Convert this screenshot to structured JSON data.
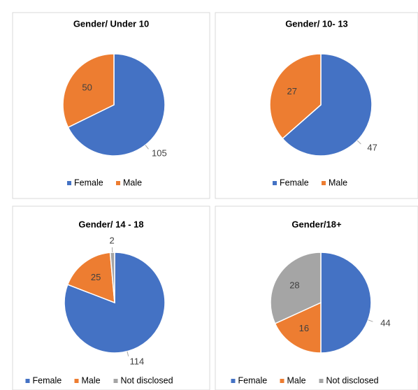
{
  "chart_data": [
    {
      "type": "pie",
      "title": "Gender/ Under 10",
      "categories": [
        "Female",
        "Male"
      ],
      "values": [
        105,
        50
      ],
      "colors": [
        "#4472c4",
        "#ed7d31"
      ]
    },
    {
      "type": "pie",
      "title": "Gender/ 10- 13",
      "categories": [
        "Female",
        "Male"
      ],
      "values": [
        47,
        27
      ],
      "colors": [
        "#4472c4",
        "#ed7d31"
      ]
    },
    {
      "type": "pie",
      "title": "Gender/ 14 - 18",
      "categories": [
        "Female",
        "Male",
        "Not disclosed"
      ],
      "values": [
        114,
        25,
        2
      ],
      "colors": [
        "#4472c4",
        "#ed7d31",
        "#a5a5a5"
      ]
    },
    {
      "type": "pie",
      "title": "Gender/18+",
      "categories": [
        "Female",
        "Male",
        "Not disclosed"
      ],
      "values": [
        44,
        16,
        28
      ],
      "colors": [
        "#4472c4",
        "#ed7d31",
        "#a5a5a5"
      ]
    }
  ]
}
